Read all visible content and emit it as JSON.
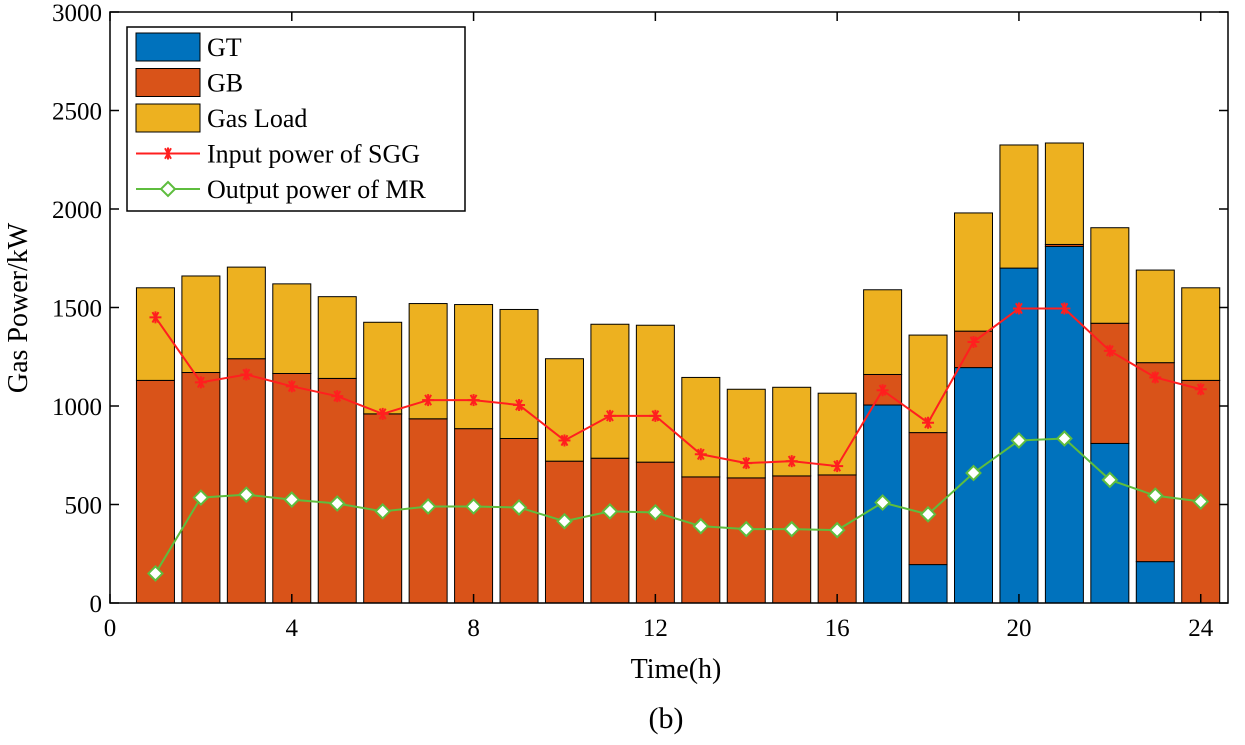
{
  "chart_data": {
    "type": "bar",
    "stacked": true,
    "xlabel": "Time(h)",
    "ylabel": "Gas Power/kW",
    "caption": "(b)",
    "xlim": [
      0,
      24.6
    ],
    "ylim": [
      0,
      3000
    ],
    "xticks": [
      0,
      4,
      8,
      12,
      16,
      20,
      24
    ],
    "yticks": [
      0,
      500,
      1000,
      1500,
      2000,
      2500,
      3000
    ],
    "grid": false,
    "legend_position": "top-left",
    "x": [
      1,
      2,
      3,
      4,
      5,
      6,
      7,
      8,
      9,
      10,
      11,
      12,
      13,
      14,
      15,
      16,
      17,
      18,
      19,
      20,
      21,
      22,
      23,
      24
    ],
    "bar_series": [
      {
        "name": "GT",
        "color": "#0072BD",
        "values": [
          0,
          0,
          0,
          0,
          0,
          0,
          0,
          0,
          0,
          0,
          0,
          0,
          0,
          0,
          0,
          0,
          1005,
          195,
          1195,
          1700,
          1810,
          810,
          210,
          0
        ]
      },
      {
        "name": "GB",
        "color": "#D95319",
        "values": [
          1130,
          1170,
          1240,
          1165,
          1140,
          960,
          935,
          885,
          835,
          720,
          735,
          715,
          640,
          635,
          645,
          650,
          155,
          670,
          185,
          0,
          10,
          610,
          1010,
          1130
        ]
      },
      {
        "name": "Gas Load",
        "color": "#EDB120",
        "values": [
          470,
          490,
          465,
          455,
          415,
          465,
          585,
          630,
          655,
          520,
          680,
          695,
          505,
          450,
          450,
          415,
          430,
          495,
          600,
          625,
          515,
          485,
          470,
          470
        ]
      }
    ],
    "line_series": [
      {
        "name": "Input power of SGG",
        "color": "#FF1F1F",
        "marker": "asterisk",
        "values": [
          1450,
          1120,
          1160,
          1100,
          1050,
          960,
          1030,
          1030,
          1005,
          825,
          950,
          950,
          755,
          710,
          720,
          695,
          1080,
          915,
          1325,
          1495,
          1495,
          1280,
          1145,
          1085
        ]
      },
      {
        "name": "Output power of MR",
        "color": "#5EBD3E",
        "marker": "diamond",
        "values": [
          150,
          535,
          550,
          525,
          505,
          465,
          490,
          490,
          485,
          415,
          465,
          460,
          390,
          375,
          375,
          370,
          510,
          450,
          660,
          825,
          835,
          625,
          545,
          515
        ]
      }
    ]
  }
}
